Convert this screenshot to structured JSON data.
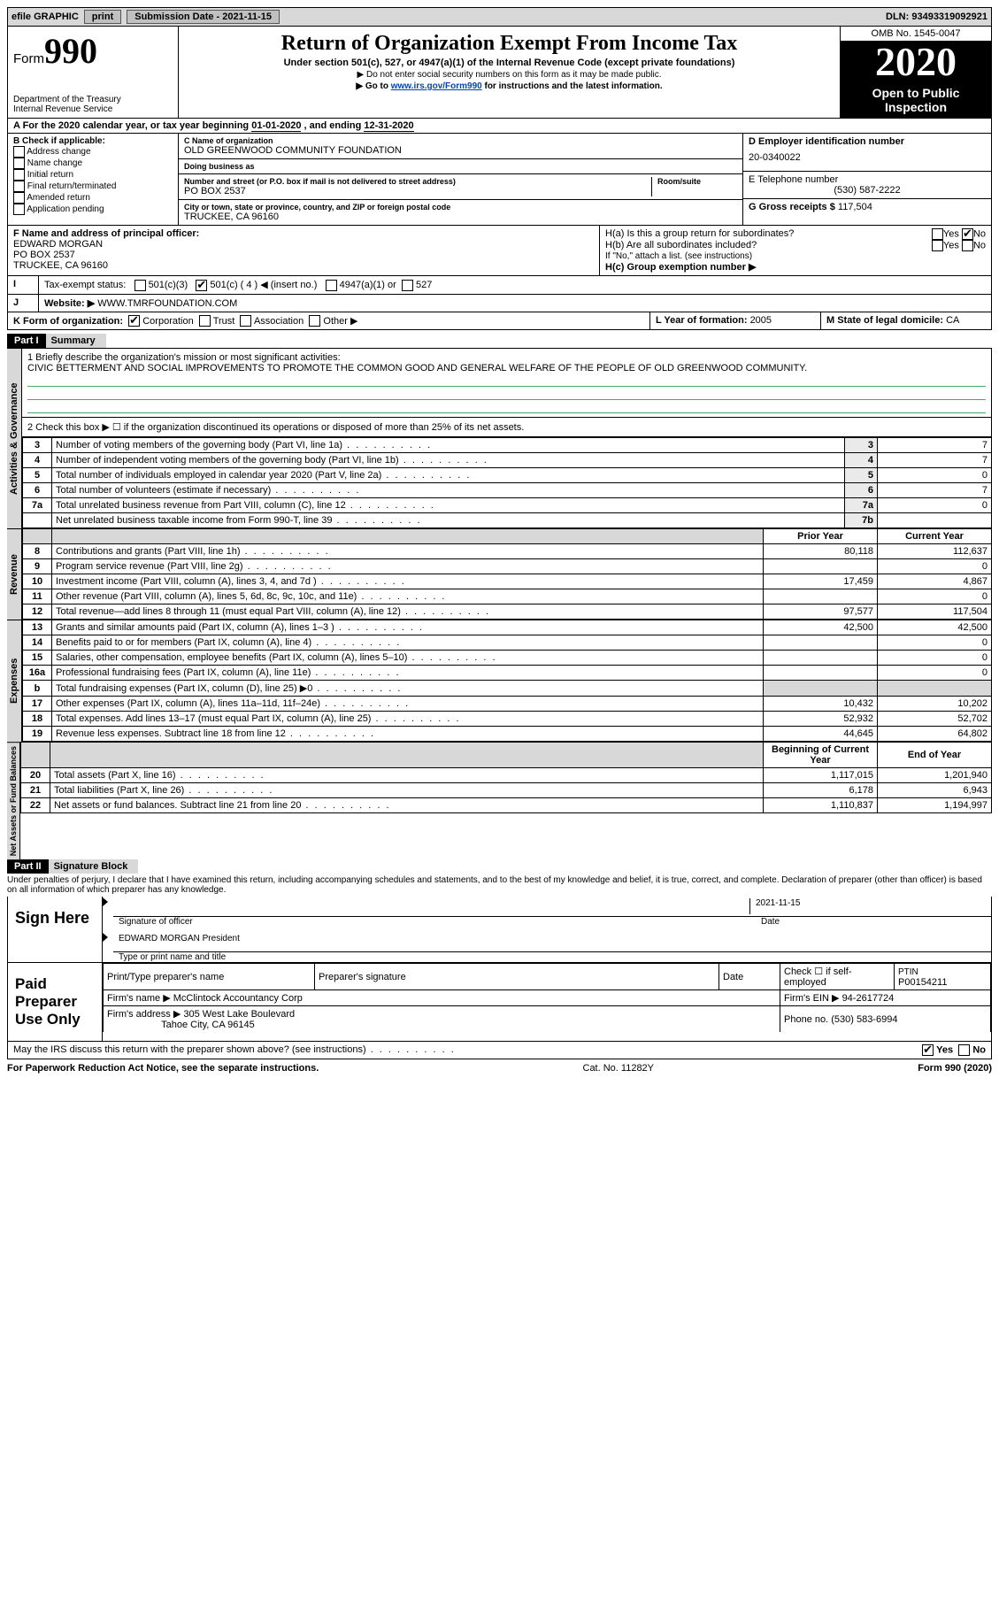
{
  "topbar": {
    "efile": "efile GRAPHIC",
    "print": "print",
    "sub_label": "Submission Date - ",
    "sub_date": "2021-11-15",
    "dln_label": "DLN: ",
    "dln": "93493319092921"
  },
  "header": {
    "form_word": "Form",
    "form_no": "990",
    "title": "Return of Organization Exempt From Income Tax",
    "subtitle": "Under section 501(c), 527, or 4947(a)(1) of the Internal Revenue Code (except private foundations)",
    "note1": "▶ Do not enter social security numbers on this form as it may be made public.",
    "note2_pre": "▶ Go to ",
    "note2_link": "www.irs.gov/Form990",
    "note2_post": " for instructions and the latest information.",
    "dept": "Department of the Treasury\nInternal Revenue Service",
    "omb": "OMB No. 1545-0047",
    "year": "2020",
    "open": "Open to Public Inspection"
  },
  "period": {
    "text_pre": "A For the 2020 calendar year, or tax year beginning ",
    "begin": "01-01-2020",
    "mid": " , and ending ",
    "end": "12-31-2020"
  },
  "filer": {
    "check_label": "B Check if applicable:",
    "checks": [
      "Address change",
      "Name change",
      "Initial return",
      "Final return/terminated",
      "Amended return",
      "Application pending"
    ],
    "name_lbl": "C Name of organization",
    "name": "OLD GREENWOOD COMMUNITY FOUNDATION",
    "dba_lbl": "Doing business as",
    "dba": "",
    "addr_lbl": "Number and street (or P.O. box if mail is not delivered to street address)",
    "room_lbl": "Room/suite",
    "addr": "PO BOX 2537",
    "city_lbl": "City or town, state or province, country, and ZIP or foreign postal code",
    "city": "TRUCKEE, CA  96160",
    "ein_lbl": "D Employer identification number",
    "ein": "20-0340022",
    "phone_lbl": "E Telephone number",
    "phone": "(530) 587-2222",
    "gross_lbl": "G Gross receipts $ ",
    "gross": "117,504",
    "officer_lbl": "F Name and address of principal officer:",
    "officer_name": "EDWARD MORGAN",
    "officer_addr1": "PO BOX 2537",
    "officer_addr2": "TRUCKEE, CA  96160",
    "h_a": "H(a)  Is this a group return for subordinates?",
    "h_b": "H(b)  Are all subordinates included?",
    "h_note": "If \"No,\" attach a list. (see instructions)",
    "h_c": "H(c)  Group exemption number ▶",
    "yes": "Yes",
    "no": "No",
    "tax_status_lbl": "Tax-exempt status:",
    "status_opts": [
      "501(c)(3)",
      "501(c) ( 4 ) ◀ (insert no.)",
      "4947(a)(1) or",
      "527"
    ],
    "website_lbl": "Website: ▶",
    "website": "WWW.TMRFOUNDATION.COM",
    "k_lbl": "K Form of organization:",
    "k_opts": [
      "Corporation",
      "Trust",
      "Association",
      "Other ▶"
    ],
    "l_lbl": "L Year of formation: ",
    "l_val": "2005",
    "m_lbl": "M State of legal domicile: ",
    "m_val": "CA"
  },
  "part1": {
    "hdr": "Part I",
    "title": "Summary",
    "line1_lbl": "1  Briefly describe the organization's mission or most significant activities:",
    "mission": "CIVIC BETTERMENT AND SOCIAL IMPROVEMENTS TO PROMOTE THE COMMON GOOD AND GENERAL WELFARE OF THE PEOPLE OF OLD GREENWOOD COMMUNITY.",
    "line2": "2   Check this box ▶ ☐  if the organization discontinued its operations or disposed of more than 25% of its net assets.",
    "gov_label": "Activities & Governance",
    "rev_label": "Revenue",
    "exp_label": "Expenses",
    "net_label": "Net Assets or Fund Balances",
    "prior_hdr": "Prior Year",
    "current_hdr": "Current Year",
    "begin_hdr": "Beginning of Current Year",
    "end_hdr": "End of Year",
    "gov_rows": [
      {
        "n": "3",
        "t": "Number of voting members of the governing body (Part VI, line 1a)",
        "r": "3",
        "v": "7"
      },
      {
        "n": "4",
        "t": "Number of independent voting members of the governing body (Part VI, line 1b)",
        "r": "4",
        "v": "7"
      },
      {
        "n": "5",
        "t": "Total number of individuals employed in calendar year 2020 (Part V, line 2a)",
        "r": "5",
        "v": "0"
      },
      {
        "n": "6",
        "t": "Total number of volunteers (estimate if necessary)",
        "r": "6",
        "v": "7"
      },
      {
        "n": "7a",
        "t": "Total unrelated business revenue from Part VIII, column (C), line 12",
        "r": "7a",
        "v": "0"
      },
      {
        "n": "",
        "t": "Net unrelated business taxable income from Form 990-T, line 39",
        "r": "7b",
        "v": ""
      }
    ],
    "rev_rows": [
      {
        "n": "8",
        "t": "Contributions and grants (Part VIII, line 1h)",
        "p": "80,118",
        "c": "112,637"
      },
      {
        "n": "9",
        "t": "Program service revenue (Part VIII, line 2g)",
        "p": "",
        "c": "0"
      },
      {
        "n": "10",
        "t": "Investment income (Part VIII, column (A), lines 3, 4, and 7d )",
        "p": "17,459",
        "c": "4,867"
      },
      {
        "n": "11",
        "t": "Other revenue (Part VIII, column (A), lines 5, 6d, 8c, 9c, 10c, and 11e)",
        "p": "",
        "c": "0"
      },
      {
        "n": "12",
        "t": "Total revenue—add lines 8 through 11 (must equal Part VIII, column (A), line 12)",
        "p": "97,577",
        "c": "117,504"
      }
    ],
    "exp_rows": [
      {
        "n": "13",
        "t": "Grants and similar amounts paid (Part IX, column (A), lines 1–3 )",
        "p": "42,500",
        "c": "42,500"
      },
      {
        "n": "14",
        "t": "Benefits paid to or for members (Part IX, column (A), line 4)",
        "p": "",
        "c": "0"
      },
      {
        "n": "15",
        "t": "Salaries, other compensation, employee benefits (Part IX, column (A), lines 5–10)",
        "p": "",
        "c": "0"
      },
      {
        "n": "16a",
        "t": "Professional fundraising fees (Part IX, column (A), line 11e)",
        "p": "",
        "c": "0"
      },
      {
        "n": "b",
        "t": "Total fundraising expenses (Part IX, column (D), line 25) ▶0",
        "p": "SHADE",
        "c": "SHADE"
      },
      {
        "n": "17",
        "t": "Other expenses (Part IX, column (A), lines 11a–11d, 11f–24e)",
        "p": "10,432",
        "c": "10,202"
      },
      {
        "n": "18",
        "t": "Total expenses. Add lines 13–17 (must equal Part IX, column (A), line 25)",
        "p": "52,932",
        "c": "52,702"
      },
      {
        "n": "19",
        "t": "Revenue less expenses. Subtract line 18 from line 12",
        "p": "44,645",
        "c": "64,802"
      }
    ],
    "net_rows": [
      {
        "n": "20",
        "t": "Total assets (Part X, line 16)",
        "p": "1,117,015",
        "c": "1,201,940"
      },
      {
        "n": "21",
        "t": "Total liabilities (Part X, line 26)",
        "p": "6,178",
        "c": "6,943"
      },
      {
        "n": "22",
        "t": "Net assets or fund balances. Subtract line 21 from line 20",
        "p": "1,110,837",
        "c": "1,194,997"
      }
    ]
  },
  "part2": {
    "hdr": "Part II",
    "title": "Signature Block",
    "penalty": "Under penalties of perjury, I declare that I have examined this return, including accompanying schedules and statements, and to the best of my knowledge and belief, it is true, correct, and complete. Declaration of preparer (other than officer) is based on all information of which preparer has any knowledge.",
    "sign_here": "Sign Here",
    "sig_officer": "Signature of officer",
    "sig_date_lbl": "Date",
    "sig_date": "2021-11-15",
    "officer_printed": "EDWARD MORGAN  President",
    "type_name": "Type or print name and title",
    "paid": "Paid Preparer Use Only",
    "prep_name_lbl": "Print/Type preparer's name",
    "prep_sig_lbl": "Preparer's signature",
    "date_lbl": "Date",
    "check_self": "Check ☐ if self-employed",
    "ptin_lbl": "PTIN",
    "ptin": "P00154211",
    "firm_name_lbl": "Firm's name    ▶",
    "firm_name": "McClintock Accountancy Corp",
    "firm_ein_lbl": "Firm's EIN ▶",
    "firm_ein": "94-2617724",
    "firm_addr_lbl": "Firm's address ▶",
    "firm_addr1": "305 West Lake Boulevard",
    "firm_addr2": "Tahoe City, CA  96145",
    "firm_phone_lbl": "Phone no. ",
    "firm_phone": "(530) 583-6994",
    "discuss": "May the IRS discuss this return with the preparer shown above? (see instructions)"
  },
  "footer": {
    "left": "For Paperwork Reduction Act Notice, see the separate instructions.",
    "mid": "Cat. No. 11282Y",
    "right": "Form 990 (2020)"
  }
}
